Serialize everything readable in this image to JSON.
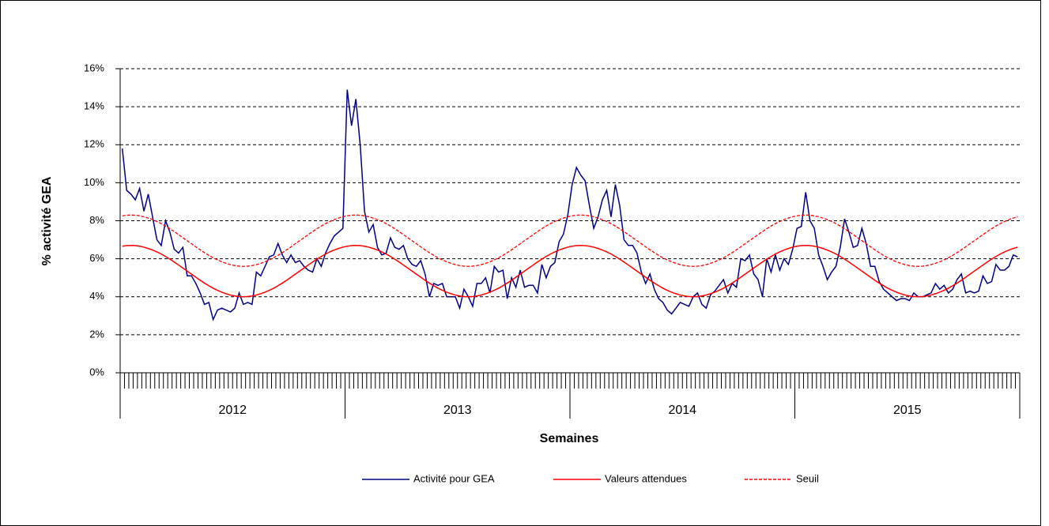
{
  "chart_data": {
    "type": "line",
    "y_label": "% activité GEA",
    "x_label": "Semaines",
    "groups": [
      "2012",
      "2013",
      "2014",
      "2015"
    ],
    "categories": [
      null,
      null,
      null,
      null,
      null,
      null,
      null,
      null,
      null,
      null,
      null,
      null,
      null,
      null,
      null,
      null,
      null,
      null,
      null,
      null,
      null,
      null,
      null,
      null,
      null,
      null,
      null,
      null,
      null,
      null,
      null,
      null,
      null,
      null,
      null,
      null,
      null,
      null,
      null,
      null,
      null,
      null,
      null,
      null,
      null,
      null,
      null,
      null,
      null,
      null,
      null,
      null,
      null,
      null,
      null,
      null,
      null,
      null,
      null,
      null,
      null,
      null,
      null,
      null,
      null,
      null,
      null,
      null,
      null,
      null,
      null,
      null,
      null,
      null,
      null,
      null,
      null,
      null,
      null,
      null,
      null,
      null,
      null,
      null,
      null,
      null,
      null,
      null,
      null,
      null,
      null,
      null,
      null,
      null,
      null,
      null,
      null,
      null,
      null,
      null,
      null,
      null,
      null,
      null,
      null,
      null,
      null,
      null,
      null,
      null,
      null,
      null,
      null,
      null,
      null,
      null,
      null,
      null,
      null,
      null,
      null,
      null,
      null,
      null,
      null,
      null,
      null,
      null,
      null,
      null,
      null,
      null,
      null,
      null,
      null,
      null,
      null,
      null,
      null,
      null,
      null,
      null,
      null,
      null,
      null,
      null,
      null,
      null,
      null,
      null,
      null,
      null,
      null,
      null,
      null,
      null,
      null,
      null,
      null,
      null,
      null,
      null,
      null,
      null,
      null,
      null,
      null,
      null,
      null,
      null,
      null,
      null,
      null,
      null,
      null,
      null,
      null,
      null,
      null,
      null,
      null,
      null,
      null,
      null,
      null,
      null,
      null,
      null,
      null,
      null,
      null,
      null,
      null,
      null,
      null,
      null,
      null,
      null,
      null,
      null,
      null,
      null,
      null,
      null,
      null,
      null,
      null,
      null
    ],
    "series": [
      {
        "name": "Activité pour GEA",
        "color": "#000080",
        "dash": false,
        "values": [
          11.8,
          9.6,
          9.4,
          9.1,
          9.7,
          8.5,
          9.4,
          8.2,
          7.0,
          6.7,
          8.0,
          7.4,
          6.5,
          6.3,
          6.6,
          5.1,
          5.1,
          4.7,
          4.2,
          3.6,
          3.7,
          2.8,
          3.3,
          3.4,
          3.3,
          3.2,
          3.4,
          4.2,
          3.6,
          3.7,
          3.6,
          5.3,
          5.1,
          5.6,
          6.1,
          6.2,
          6.8,
          6.2,
          5.8,
          6.2,
          5.8,
          5.9,
          5.6,
          5.4,
          5.3,
          6.0,
          5.6,
          6.3,
          6.8,
          7.2,
          7.4,
          7.6,
          14.9,
          13.0,
          14.4,
          12.0,
          8.5,
          7.4,
          7.8,
          6.6,
          6.2,
          6.3,
          7.1,
          6.6,
          6.5,
          6.7,
          6.0,
          5.7,
          5.6,
          5.9,
          5.2,
          4.0,
          4.7,
          4.6,
          4.7,
          4.0,
          4.0,
          4.0,
          3.4,
          4.4,
          4.0,
          3.5,
          4.7,
          4.7,
          5.0,
          4.2,
          5.6,
          5.3,
          5.4,
          3.9,
          5.0,
          4.5,
          5.4,
          4.5,
          4.6,
          4.6,
          4.2,
          5.7,
          5.0,
          5.6,
          5.8,
          6.9,
          7.3,
          8.3,
          9.9,
          10.8,
          10.4,
          10.1,
          8.8,
          7.6,
          8.2,
          9.1,
          9.6,
          8.2,
          9.9,
          8.8,
          7.0,
          6.7,
          6.7,
          6.3,
          5.3,
          4.7,
          5.2,
          4.4,
          3.9,
          3.7,
          3.3,
          3.1,
          3.4,
          3.7,
          3.6,
          3.5,
          4.0,
          4.2,
          3.6,
          3.4,
          4.1,
          4.3,
          4.6,
          4.9,
          4.2,
          4.7,
          4.5,
          6.0,
          5.9,
          6.2,
          5.2,
          4.9,
          4.0,
          6.0,
          5.3,
          6.2,
          5.4,
          6.0,
          5.7,
          6.5,
          7.6,
          7.7,
          9.5,
          8.0,
          7.6,
          6.2,
          5.6,
          4.9,
          5.3,
          5.6,
          6.6,
          8.1,
          7.4,
          6.6,
          6.7,
          7.6,
          6.8,
          5.6,
          5.6,
          4.8,
          4.4,
          4.2,
          4.0,
          3.8,
          3.9,
          3.9,
          3.8,
          4.2,
          4.0,
          4.0,
          4.1,
          4.2,
          4.7,
          4.4,
          4.6,
          4.2,
          4.4,
          4.9,
          5.2,
          4.2,
          4.3,
          4.2,
          4.3,
          5.1,
          4.7,
          4.8,
          5.7,
          5.4,
          5.4,
          5.6,
          6.2,
          6.1
        ]
      },
      {
        "name": "Valeurs attendues",
        "color": "#ff0000",
        "dash": false,
        "values": [
          6.66,
          6.69,
          6.7,
          6.69,
          6.66,
          6.61,
          6.54,
          6.46,
          6.36,
          6.25,
          6.12,
          5.98,
          5.83,
          5.67,
          5.51,
          5.35,
          5.19,
          5.03,
          4.87,
          4.72,
          4.58,
          4.45,
          4.34,
          4.24,
          4.16,
          4.09,
          4.04,
          4.01,
          4.0,
          4.01,
          4.04,
          4.09,
          4.16,
          4.24,
          4.34,
          4.45,
          4.58,
          4.72,
          4.87,
          5.03,
          5.19,
          5.35,
          5.51,
          5.67,
          5.83,
          5.98,
          6.12,
          6.25,
          6.36,
          6.46,
          6.54,
          6.61,
          6.66,
          6.69,
          6.7,
          6.69,
          6.66,
          6.61,
          6.54,
          6.46,
          6.36,
          6.25,
          6.12,
          5.98,
          5.83,
          5.67,
          5.51,
          5.35,
          5.19,
          5.03,
          4.87,
          4.72,
          4.58,
          4.45,
          4.34,
          4.24,
          4.16,
          4.09,
          4.04,
          4.01,
          4.0,
          4.01,
          4.04,
          4.09,
          4.16,
          4.24,
          4.34,
          4.45,
          4.58,
          4.72,
          4.87,
          5.03,
          5.19,
          5.35,
          5.51,
          5.67,
          5.83,
          5.98,
          6.12,
          6.25,
          6.36,
          6.46,
          6.54,
          6.61,
          6.66,
          6.69,
          6.7,
          6.69,
          6.66,
          6.61,
          6.54,
          6.46,
          6.36,
          6.25,
          6.12,
          5.98,
          5.83,
          5.67,
          5.51,
          5.35,
          5.19,
          5.03,
          4.87,
          4.72,
          4.58,
          4.45,
          4.34,
          4.24,
          4.16,
          4.09,
          4.04,
          4.01,
          4.0,
          4.01,
          4.04,
          4.09,
          4.16,
          4.24,
          4.34,
          4.45,
          4.58,
          4.72,
          4.87,
          5.03,
          5.19,
          5.35,
          5.51,
          5.67,
          5.83,
          5.98,
          6.12,
          6.25,
          6.36,
          6.46,
          6.54,
          6.61,
          6.66,
          6.69,
          6.7,
          6.69,
          6.66,
          6.61,
          6.54,
          6.46,
          6.36,
          6.25,
          6.12,
          5.98,
          5.83,
          5.67,
          5.51,
          5.35,
          5.19,
          5.03,
          4.87,
          4.72,
          4.58,
          4.45,
          4.34,
          4.24,
          4.16,
          4.09,
          4.04,
          4.01,
          4.0,
          4.01,
          4.04,
          4.09,
          4.16,
          4.24,
          4.34,
          4.45,
          4.58,
          4.72,
          4.87,
          5.03,
          5.19,
          5.35,
          5.51,
          5.67,
          5.83,
          5.98,
          6.12,
          6.25,
          6.36,
          6.46,
          6.54,
          6.61
        ]
      },
      {
        "name": "Seuil",
        "color": "#ff0000",
        "dash": true,
        "values": [
          8.26,
          8.29,
          8.3,
          8.29,
          8.26,
          8.21,
          8.14,
          8.06,
          7.96,
          7.85,
          7.72,
          7.58,
          7.43,
          7.27,
          7.11,
          6.95,
          6.79,
          6.63,
          6.47,
          6.32,
          6.18,
          6.05,
          5.94,
          5.84,
          5.76,
          5.69,
          5.64,
          5.61,
          5.6,
          5.61,
          5.64,
          5.69,
          5.76,
          5.84,
          5.94,
          6.05,
          6.18,
          6.32,
          6.47,
          6.63,
          6.79,
          6.95,
          7.11,
          7.27,
          7.43,
          7.58,
          7.72,
          7.85,
          7.96,
          8.06,
          8.14,
          8.21,
          8.26,
          8.29,
          8.3,
          8.29,
          8.26,
          8.21,
          8.14,
          8.06,
          7.96,
          7.85,
          7.72,
          7.58,
          7.43,
          7.27,
          7.11,
          6.95,
          6.79,
          6.63,
          6.47,
          6.32,
          6.18,
          6.05,
          5.94,
          5.84,
          5.76,
          5.69,
          5.64,
          5.61,
          5.6,
          5.61,
          5.64,
          5.69,
          5.76,
          5.84,
          5.94,
          6.05,
          6.18,
          6.32,
          6.47,
          6.63,
          6.79,
          6.95,
          7.11,
          7.27,
          7.43,
          7.58,
          7.72,
          7.85,
          7.96,
          8.06,
          8.14,
          8.21,
          8.26,
          8.29,
          8.3,
          8.29,
          8.26,
          8.21,
          8.14,
          8.06,
          7.96,
          7.85,
          7.72,
          7.58,
          7.43,
          7.27,
          7.11,
          6.95,
          6.79,
          6.63,
          6.47,
          6.32,
          6.18,
          6.05,
          5.94,
          5.84,
          5.76,
          5.69,
          5.64,
          5.61,
          5.6,
          5.61,
          5.64,
          5.69,
          5.76,
          5.84,
          5.94,
          6.05,
          6.18,
          6.32,
          6.47,
          6.63,
          6.79,
          6.95,
          7.11,
          7.27,
          7.43,
          7.58,
          7.72,
          7.85,
          7.96,
          8.06,
          8.14,
          8.21,
          8.26,
          8.29,
          8.3,
          8.29,
          8.26,
          8.21,
          8.14,
          8.06,
          7.96,
          7.85,
          7.72,
          7.58,
          7.43,
          7.27,
          7.11,
          6.95,
          6.79,
          6.63,
          6.47,
          6.32,
          6.18,
          6.05,
          5.94,
          5.84,
          5.76,
          5.69,
          5.64,
          5.61,
          5.6,
          5.61,
          5.64,
          5.69,
          5.76,
          5.84,
          5.94,
          6.05,
          6.18,
          6.32,
          6.47,
          6.63,
          6.79,
          6.95,
          7.11,
          7.27,
          7.43,
          7.58,
          7.72,
          7.85,
          7.96,
          8.06,
          8.14,
          8.21
        ]
      }
    ],
    "ylim": [
      0,
      16
    ],
    "yticks": [
      {
        "value": 0,
        "label": "0%"
      },
      {
        "value": 2,
        "label": "2%"
      },
      {
        "value": 4,
        "label": "4%"
      },
      {
        "value": 6,
        "label": "6%"
      },
      {
        "value": 8,
        "label": "8%"
      },
      {
        "value": 10,
        "label": "10%"
      },
      {
        "value": 12,
        "label": "12%"
      },
      {
        "value": 14,
        "label": "14%"
      },
      {
        "value": 16,
        "label": "16%"
      }
    ],
    "grid": true,
    "legend": "bottom"
  }
}
